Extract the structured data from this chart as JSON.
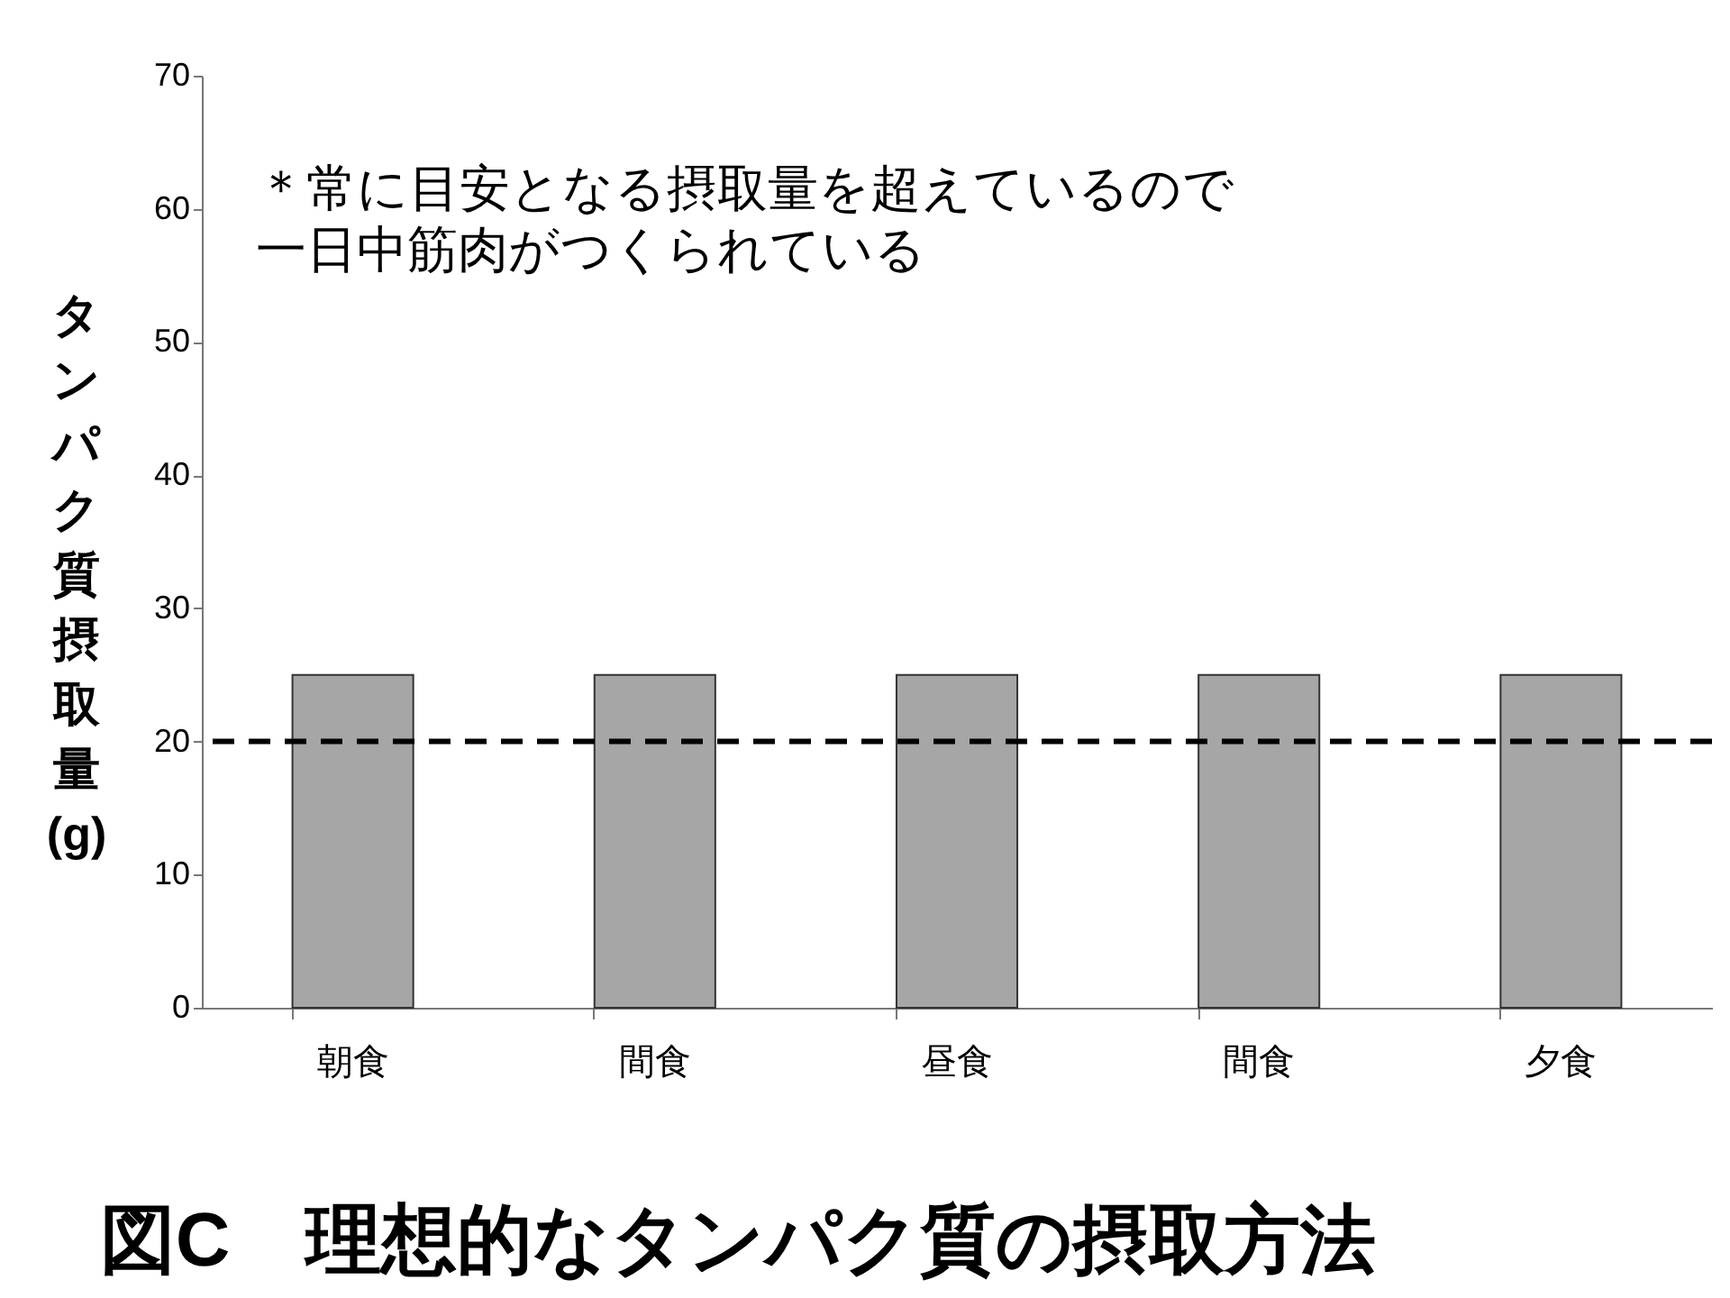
{
  "chart_data": {
    "type": "bar",
    "title": "図C　理想的なタンパク質の摂取方法",
    "ylabel": "タンパク質摂取量(g)",
    "categories": [
      "朝食",
      "間食",
      "昼食",
      "間食",
      "夕食"
    ],
    "values": [
      25,
      25,
      25,
      25,
      25
    ],
    "color": "#a6a6a6",
    "ylim": [
      0,
      70
    ],
    "yticks": [
      0,
      10,
      20,
      30,
      40,
      50,
      60,
      70
    ],
    "ref_lines": [
      {
        "axis": "y",
        "value": 20,
        "color": "#000000",
        "line_style": "dashed"
      }
    ],
    "annotations": [
      "＊常に目安となる摂取量を超えているので",
      "一日中筋肉がつくられている"
    ],
    "grid": false
  }
}
